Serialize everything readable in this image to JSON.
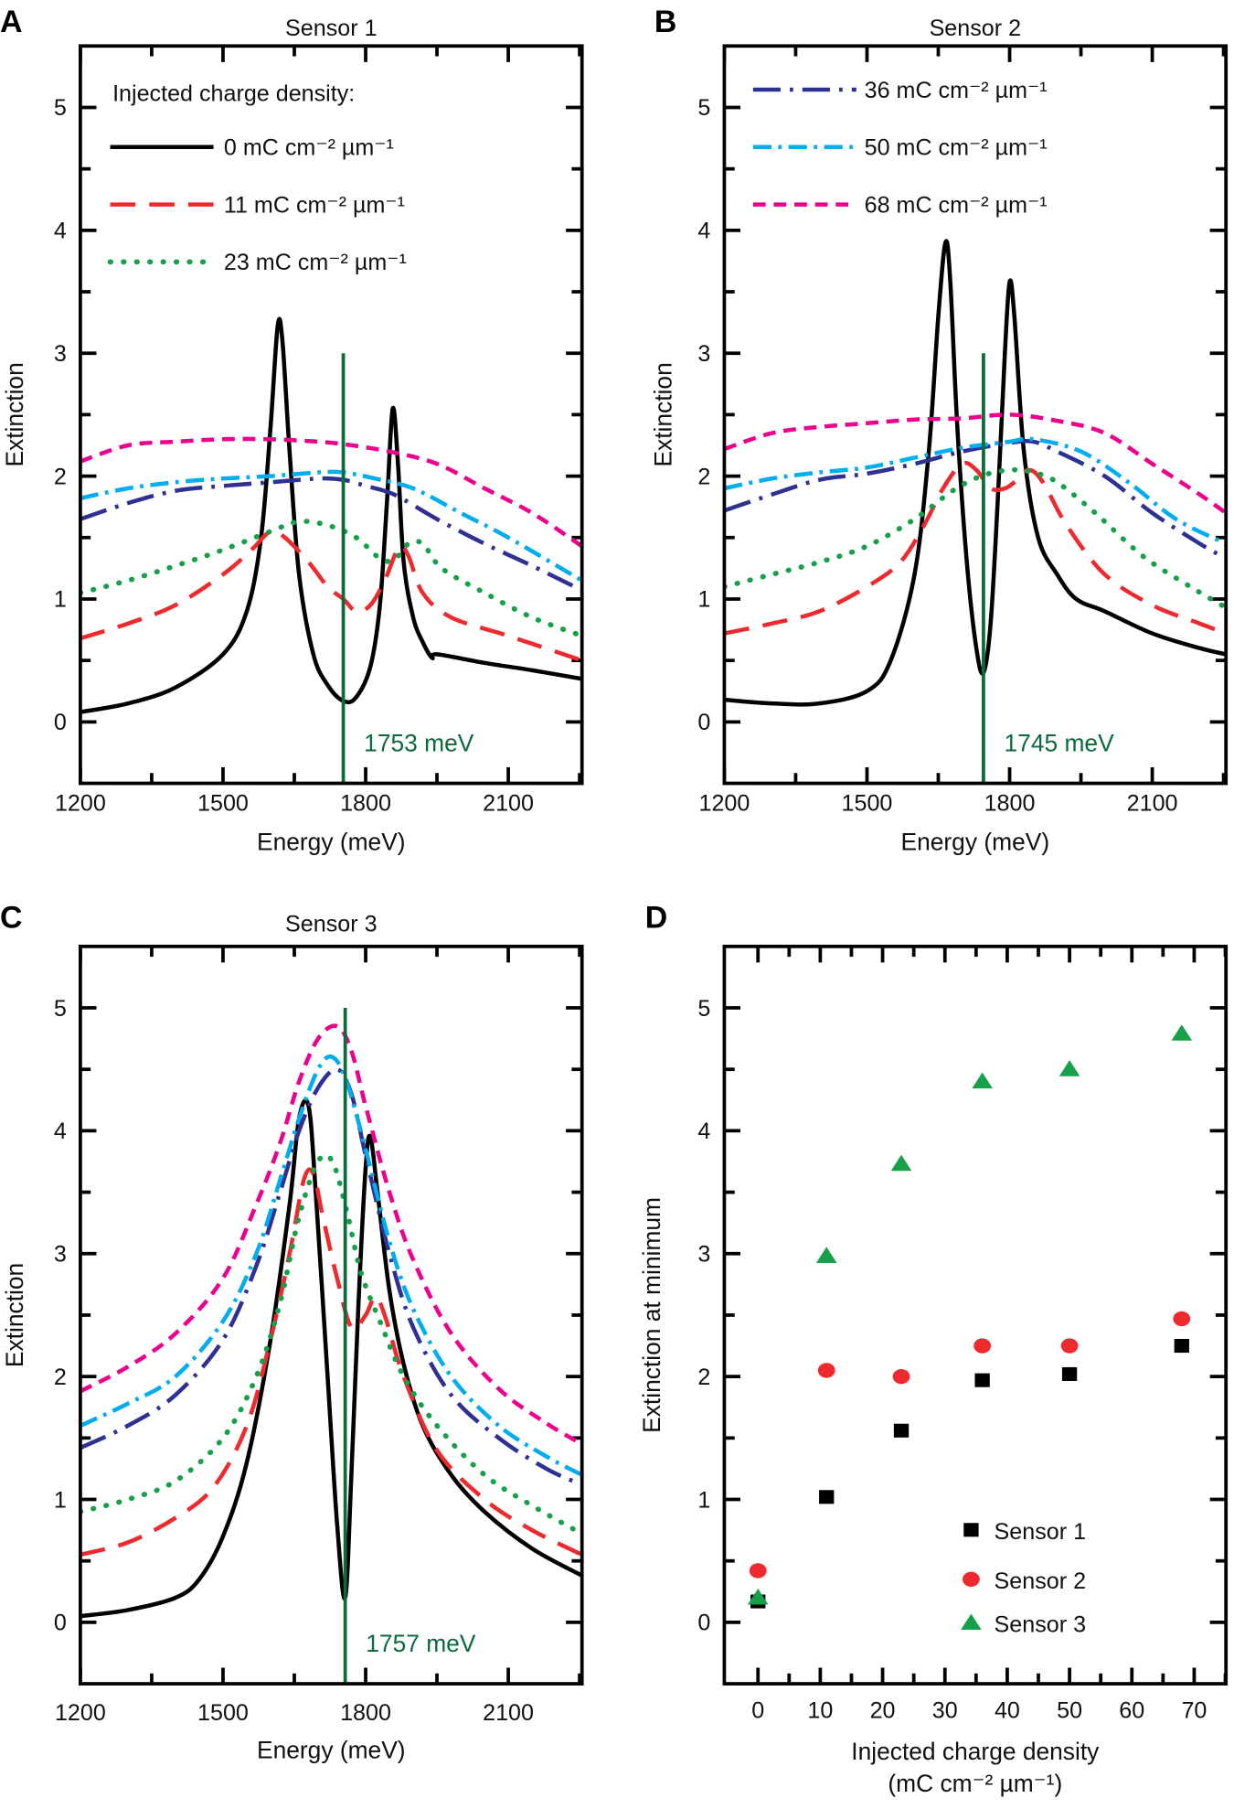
{
  "chart_data": [
    {
      "type": "line",
      "panel_letter": "A",
      "title": "Sensor 1",
      "xlabel": "Energy (meV)",
      "ylabel": "Extinction",
      "xlim": [
        1200,
        2255
      ],
      "ylim": [
        -0.5,
        5.5
      ],
      "xticks": [
        1200,
        1500,
        1800,
        2100
      ],
      "yticks": [
        0,
        1,
        2,
        3,
        4,
        5
      ],
      "grid": false,
      "legend_title": "Injected charge density:",
      "legend_entries": [
        0,
        1,
        2
      ],
      "legend_placement": "top-left",
      "marker_line": {
        "x": 1753,
        "y_range": [
          -0.5,
          3
        ],
        "label": "1753 meV",
        "color": "#0b6b3a"
      },
      "series": [
        {
          "name": "0 mC cm⁻² µm⁻¹",
          "color": "#000000",
          "style": "solid",
          "x": [
            1200,
            1300,
            1400,
            1500,
            1550,
            1580,
            1600,
            1615,
            1625,
            1640,
            1660,
            1690,
            1720,
            1753,
            1780,
            1810,
            1830,
            1845,
            1857,
            1868,
            1880,
            1900,
            1920,
            1940,
            1950,
            2050,
            2150,
            2255
          ],
          "y": [
            0.08,
            0.15,
            0.28,
            0.55,
            0.9,
            1.5,
            2.4,
            3.22,
            3.1,
            2.2,
            1.2,
            0.55,
            0.3,
            0.17,
            0.2,
            0.45,
            0.95,
            1.8,
            2.55,
            2.1,
            1.3,
            0.85,
            0.65,
            0.52,
            0.55,
            0.48,
            0.42,
            0.35
          ]
        },
        {
          "name": "11 mC cm⁻² µm⁻¹",
          "color": "#ee2a2e",
          "style": "dashed",
          "x": [
            1200,
            1300,
            1400,
            1500,
            1560,
            1600,
            1630,
            1680,
            1720,
            1753,
            1780,
            1810,
            1840,
            1870,
            1890,
            1920,
            1980,
            2100,
            2255
          ],
          "y": [
            0.68,
            0.8,
            0.95,
            1.2,
            1.4,
            1.55,
            1.5,
            1.3,
            1.1,
            1.0,
            0.9,
            0.95,
            1.15,
            1.42,
            1.35,
            1.05,
            0.85,
            0.7,
            0.5
          ]
        },
        {
          "name": "23 mC cm⁻² µm⁻¹",
          "color": "#17a04a",
          "style": "dotted",
          "x": [
            1200,
            1300,
            1400,
            1500,
            1600,
            1660,
            1720,
            1780,
            1830,
            1860,
            1890,
            1920,
            1960,
            2050,
            2150,
            2255
          ],
          "y": [
            1.05,
            1.15,
            1.27,
            1.4,
            1.55,
            1.63,
            1.6,
            1.5,
            1.33,
            1.32,
            1.45,
            1.45,
            1.25,
            1.05,
            0.85,
            0.7
          ]
        },
        {
          "name": "36 mC cm⁻² µm⁻¹",
          "color": "#2e3192",
          "style": "dash-dot",
          "x": [
            1200,
            1300,
            1400,
            1500,
            1600,
            1700,
            1753,
            1800,
            1860,
            1950,
            2050,
            2150,
            2255
          ],
          "y": [
            1.65,
            1.78,
            1.88,
            1.92,
            1.95,
            1.98,
            1.97,
            1.92,
            1.85,
            1.65,
            1.45,
            1.27,
            1.07
          ]
        },
        {
          "name": "50 mC cm⁻² µm⁻¹",
          "color": "#00aeef",
          "style": "dash-dot-dot",
          "x": [
            1200,
            1300,
            1400,
            1500,
            1600,
            1700,
            1753,
            1820,
            1900,
            2000,
            2100,
            2255
          ],
          "y": [
            1.82,
            1.9,
            1.95,
            1.98,
            2.0,
            2.03,
            2.03,
            1.98,
            1.9,
            1.7,
            1.5,
            1.15
          ]
        },
        {
          "name": "68 mC cm⁻² µm⁻¹",
          "color": "#ec008c",
          "style": "short-dash",
          "x": [
            1200,
            1300,
            1400,
            1500,
            1600,
            1700,
            1753,
            1850,
            1950,
            2050,
            2150,
            2255
          ],
          "y": [
            2.12,
            2.25,
            2.28,
            2.3,
            2.3,
            2.28,
            2.26,
            2.2,
            2.1,
            1.9,
            1.7,
            1.43
          ]
        }
      ]
    },
    {
      "type": "line",
      "panel_letter": "B",
      "title": "Sensor 2",
      "xlabel": "Energy (meV)",
      "ylabel": "Extinction",
      "xlim": [
        1200,
        2255
      ],
      "ylim": [
        -0.5,
        5.5
      ],
      "xticks": [
        1200,
        1500,
        1800,
        2100
      ],
      "yticks": [
        0,
        1,
        2,
        3,
        4,
        5
      ],
      "grid": false,
      "legend_entries": [
        3,
        4,
        5
      ],
      "legend_placement": "top-left",
      "marker_line": {
        "x": 1745,
        "y_range": [
          -0.5,
          3
        ],
        "label": "1745 meV",
        "color": "#0b6b3a"
      },
      "series": [
        {
          "name": "0 mC cm⁻² µm⁻¹",
          "color": "#000000",
          "style": "solid",
          "x": [
            1200,
            1300,
            1400,
            1500,
            1550,
            1600,
            1630,
            1650,
            1665,
            1675,
            1690,
            1710,
            1730,
            1745,
            1760,
            1775,
            1790,
            1800,
            1810,
            1830,
            1860,
            1900,
            1940,
            2000,
            2100,
            2200,
            2255
          ],
          "y": [
            0.18,
            0.15,
            0.15,
            0.25,
            0.5,
            1.2,
            2.2,
            3.3,
            3.9,
            3.6,
            2.4,
            1.3,
            0.6,
            0.4,
            0.8,
            1.8,
            3.0,
            3.58,
            3.3,
            2.2,
            1.5,
            1.2,
            1.0,
            0.9,
            0.72,
            0.6,
            0.55
          ]
        },
        {
          "name": "11 mC cm⁻² µm⁻¹",
          "color": "#ee2a2e",
          "style": "dashed",
          "x": [
            1200,
            1300,
            1400,
            1500,
            1570,
            1620,
            1660,
            1700,
            1730,
            1760,
            1790,
            1810,
            1840,
            1870,
            1920,
            2000,
            2100,
            2200,
            2255
          ],
          "y": [
            0.72,
            0.8,
            0.9,
            1.1,
            1.3,
            1.6,
            1.9,
            2.1,
            2.05,
            1.9,
            1.9,
            1.95,
            2.05,
            1.95,
            1.6,
            1.2,
            0.95,
            0.8,
            0.72
          ]
        },
        {
          "name": "23 mC cm⁻² µm⁻¹",
          "color": "#17a04a",
          "style": "dotted",
          "x": [
            1200,
            1300,
            1400,
            1500,
            1600,
            1680,
            1740,
            1800,
            1850,
            1900,
            1980,
            2080,
            2180,
            2255
          ],
          "y": [
            1.1,
            1.2,
            1.3,
            1.43,
            1.65,
            1.88,
            2.0,
            2.05,
            2.03,
            1.95,
            1.7,
            1.35,
            1.1,
            0.93
          ]
        },
        {
          "name": "36 mC cm⁻² µm⁻¹",
          "color": "#2e3192",
          "style": "dash-dot",
          "x": [
            1200,
            1300,
            1400,
            1500,
            1600,
            1700,
            1800,
            1850,
            1900,
            2000,
            2100,
            2200,
            2255
          ],
          "y": [
            1.72,
            1.85,
            1.97,
            2.02,
            2.1,
            2.2,
            2.27,
            2.28,
            2.2,
            2.0,
            1.7,
            1.45,
            1.33
          ]
        },
        {
          "name": "50 mC cm⁻² µm⁻¹",
          "color": "#00aeef",
          "style": "dash-dot-dot",
          "x": [
            1200,
            1300,
            1400,
            1500,
            1600,
            1700,
            1800,
            1850,
            1950,
            2050,
            2150,
            2255
          ],
          "y": [
            1.9,
            1.98,
            2.03,
            2.07,
            2.15,
            2.23,
            2.28,
            2.3,
            2.2,
            1.95,
            1.65,
            1.45
          ]
        },
        {
          "name": "68 mC cm⁻² µm⁻¹",
          "color": "#ec008c",
          "style": "short-dash",
          "x": [
            1200,
            1300,
            1400,
            1500,
            1600,
            1700,
            1800,
            1900,
            2000,
            2100,
            2200,
            2255
          ],
          "y": [
            2.22,
            2.35,
            2.4,
            2.43,
            2.46,
            2.47,
            2.5,
            2.45,
            2.35,
            2.1,
            1.85,
            1.7
          ]
        }
      ]
    },
    {
      "type": "line",
      "panel_letter": "C",
      "title": "Sensor 3",
      "xlabel": "Energy (meV)",
      "ylabel": "Extinction",
      "xlim": [
        1200,
        2255
      ],
      "ylim": [
        -0.5,
        5.5
      ],
      "xticks": [
        1200,
        1500,
        1800,
        2100
      ],
      "yticks": [
        0,
        1,
        2,
        3,
        4,
        5
      ],
      "grid": false,
      "marker_line": {
        "x": 1757,
        "y_range": [
          -0.5,
          5
        ],
        "label": "1757 meV",
        "color": "#0b6b3a"
      },
      "series": [
        {
          "name": "0 mC cm⁻² µm⁻¹",
          "color": "#000000",
          "style": "solid",
          "x": [
            1200,
            1300,
            1400,
            1450,
            1500,
            1550,
            1600,
            1640,
            1660,
            1680,
            1695,
            1720,
            1740,
            1757,
            1770,
            1785,
            1800,
            1810,
            1825,
            1850,
            1880,
            1920,
            1980,
            2050,
            2150,
            2255
          ],
          "y": [
            0.05,
            0.1,
            0.2,
            0.35,
            0.7,
            1.3,
            2.3,
            3.4,
            4.1,
            4.2,
            3.5,
            2.0,
            0.8,
            0.2,
            1.2,
            2.6,
            3.7,
            3.95,
            3.5,
            2.7,
            2.1,
            1.6,
            1.2,
            0.9,
            0.6,
            0.38
          ]
        },
        {
          "name": "11 mC cm⁻² µm⁻¹",
          "color": "#ee2a2e",
          "style": "dashed",
          "x": [
            1200,
            1300,
            1400,
            1480,
            1550,
            1600,
            1640,
            1670,
            1690,
            1710,
            1740,
            1770,
            1800,
            1820,
            1840,
            1880,
            1950,
            2050,
            2150,
            2255
          ],
          "y": [
            0.55,
            0.65,
            0.85,
            1.1,
            1.6,
            2.3,
            3.0,
            3.6,
            3.65,
            3.3,
            2.8,
            2.4,
            2.5,
            2.65,
            2.5,
            2.0,
            1.4,
            1.0,
            0.75,
            0.55
          ]
        },
        {
          "name": "23 mC cm⁻² µm⁻¹",
          "color": "#17a04a",
          "style": "dotted",
          "x": [
            1200,
            1300,
            1400,
            1500,
            1570,
            1620,
            1660,
            1700,
            1730,
            1760,
            1790,
            1830,
            1880,
            1950,
            2050,
            2150,
            2255
          ],
          "y": [
            0.9,
            1.0,
            1.15,
            1.5,
            2.0,
            2.6,
            3.3,
            3.75,
            3.75,
            3.35,
            2.85,
            2.45,
            2.0,
            1.6,
            1.2,
            0.95,
            0.72
          ]
        },
        {
          "name": "36 mC cm⁻² µm⁻¹",
          "color": "#2e3192",
          "style": "dash-dot",
          "x": [
            1200,
            1300,
            1400,
            1500,
            1570,
            1620,
            1660,
            1700,
            1740,
            1770,
            1800,
            1850,
            1900,
            1980,
            2080,
            2180,
            2255
          ],
          "y": [
            1.42,
            1.6,
            1.85,
            2.3,
            2.9,
            3.5,
            4.0,
            4.35,
            4.5,
            4.3,
            3.8,
            3.0,
            2.4,
            1.85,
            1.5,
            1.25,
            1.12
          ]
        },
        {
          "name": "50 mC cm⁻² µm⁻¹",
          "color": "#00aeef",
          "style": "dash-dot-dot",
          "x": [
            1200,
            1300,
            1400,
            1500,
            1570,
            1620,
            1660,
            1700,
            1730,
            1760,
            1800,
            1850,
            1900,
            1980,
            2080,
            2180,
            2255
          ],
          "y": [
            1.6,
            1.78,
            2.0,
            2.45,
            3.0,
            3.6,
            4.1,
            4.5,
            4.6,
            4.4,
            3.85,
            3.1,
            2.55,
            2.0,
            1.6,
            1.35,
            1.2
          ]
        },
        {
          "name": "68 mC cm⁻² µm⁻¹",
          "color": "#ec008c",
          "style": "short-dash",
          "x": [
            1200,
            1300,
            1400,
            1500,
            1570,
            1620,
            1660,
            1700,
            1740,
            1770,
            1800,
            1850,
            1900,
            1980,
            2080,
            2180,
            2255
          ],
          "y": [
            1.88,
            2.08,
            2.35,
            2.8,
            3.4,
            3.9,
            4.4,
            4.75,
            4.85,
            4.65,
            4.2,
            3.5,
            2.95,
            2.35,
            1.9,
            1.62,
            1.45
          ]
        }
      ]
    },
    {
      "type": "scatter",
      "panel_letter": "D",
      "xlabel": "Injected charge density",
      "xlabel_unit": "(mC cm⁻² µm⁻¹)",
      "ylabel": "Extinction at minimum",
      "xlim": [
        -5.4,
        75.1
      ],
      "ylim": [
        -0.5,
        5.5
      ],
      "xticks": [
        0,
        10,
        20,
        30,
        40,
        50,
        60,
        70
      ],
      "yticks": [
        0,
        1,
        2,
        3,
        4,
        5
      ],
      "grid": false,
      "legend_placement": "bottom-right",
      "series": [
        {
          "name": "Sensor 1",
          "color": "#000000",
          "marker": "square",
          "x": [
            0,
            11,
            23,
            36,
            50,
            68
          ],
          "y": [
            0.17,
            1.02,
            1.56,
            1.97,
            2.02,
            2.25
          ]
        },
        {
          "name": "Sensor 2",
          "color": "#ee2a2e",
          "marker": "circle",
          "x": [
            0,
            11,
            23,
            36,
            50,
            68
          ],
          "y": [
            0.42,
            2.05,
            2.0,
            2.25,
            2.25,
            2.47
          ]
        },
        {
          "name": "Sensor 3",
          "color": "#17a04a",
          "marker": "triangle",
          "x": [
            0,
            11,
            23,
            36,
            50,
            68
          ],
          "y": [
            0.2,
            2.98,
            3.73,
            4.4,
            4.5,
            4.79
          ]
        }
      ]
    }
  ]
}
